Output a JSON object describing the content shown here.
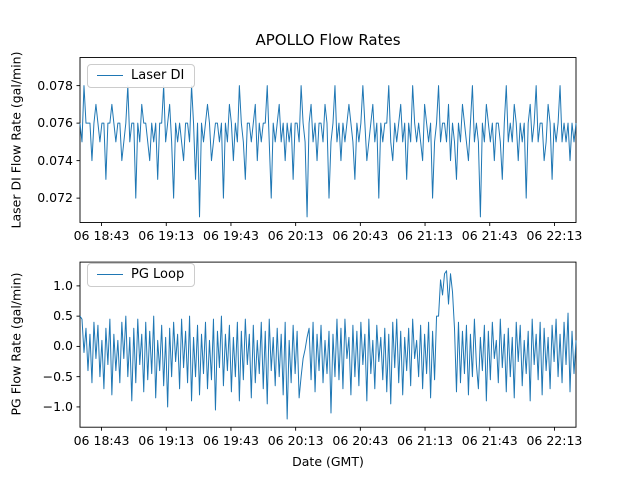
{
  "figure_title": "APOLLO Flow Rates",
  "accent_color": "#1f77b4",
  "chart_data": [
    {
      "type": "line",
      "name": "laser-di",
      "legend": [
        "Laser DI"
      ],
      "legend_position": "upper left",
      "ylabel": "Laser DI Flow Rate (gal/min)",
      "xlabel": "",
      "grid": false,
      "ylim": [
        0.0707,
        0.0795
      ],
      "yticks": [
        0.078,
        0.076,
        0.074,
        0.072
      ],
      "ytick_labels": [
        "0.078",
        "0.076",
        "0.074",
        "0.072"
      ],
      "xtick_labels": [
        "06 18:43",
        "06 19:13",
        "06 19:43",
        "06 20:13",
        "06 20:43",
        "06 21:13",
        "06 21:43",
        "06 22:13"
      ],
      "x_span_minutes": 230,
      "first_tick_offset_minutes": 10,
      "tick_interval_minutes": 30,
      "line_color": "#1f77b4",
      "values": [
        0.076,
        0.075,
        0.078,
        0.076,
        0.076,
        0.076,
        0.074,
        0.076,
        0.077,
        0.076,
        0.075,
        0.076,
        0.076,
        0.073,
        0.076,
        0.076,
        0.077,
        0.076,
        0.075,
        0.076,
        0.076,
        0.074,
        0.075,
        0.076,
        0.078,
        0.075,
        0.076,
        0.076,
        0.072,
        0.076,
        0.075,
        0.077,
        0.076,
        0.076,
        0.075,
        0.074,
        0.076,
        0.075,
        0.076,
        0.073,
        0.076,
        0.076,
        0.078,
        0.075,
        0.076,
        0.077,
        0.075,
        0.072,
        0.076,
        0.075,
        0.076,
        0.075,
        0.074,
        0.076,
        0.076,
        0.075,
        0.078,
        0.076,
        0.073,
        0.076,
        0.071,
        0.076,
        0.075,
        0.076,
        0.077,
        0.076,
        0.074,
        0.075,
        0.076,
        0.076,
        0.075,
        0.076,
        0.072,
        0.076,
        0.075,
        0.077,
        0.076,
        0.074,
        0.076,
        0.075,
        0.078,
        0.076,
        0.075,
        0.073,
        0.076,
        0.076,
        0.075,
        0.076,
        0.077,
        0.074,
        0.076,
        0.075,
        0.076,
        0.076,
        0.078,
        0.075,
        0.072,
        0.076,
        0.075,
        0.076,
        0.077,
        0.075,
        0.076,
        0.074,
        0.076,
        0.075,
        0.076,
        0.073,
        0.076,
        0.076,
        0.075,
        0.078,
        0.076,
        0.075,
        0.071,
        0.076,
        0.077,
        0.075,
        0.076,
        0.074,
        0.076,
        0.076,
        0.075,
        0.077,
        0.076,
        0.072,
        0.075,
        0.076,
        0.078,
        0.075,
        0.076,
        0.074,
        0.076,
        0.075,
        0.076,
        0.077,
        0.076,
        0.075,
        0.073,
        0.076,
        0.075,
        0.076,
        0.078,
        0.076,
        0.074,
        0.075,
        0.076,
        0.077,
        0.075,
        0.076,
        0.072,
        0.076,
        0.075,
        0.076,
        0.076,
        0.078,
        0.075,
        0.074,
        0.076,
        0.075,
        0.076,
        0.077,
        0.075,
        0.076,
        0.073,
        0.076,
        0.075,
        0.078,
        0.076,
        0.075,
        0.076,
        0.075,
        0.074,
        0.077,
        0.076,
        0.075,
        0.076,
        0.072,
        0.075,
        0.076,
        0.078,
        0.075,
        0.076,
        0.076,
        0.075,
        0.077,
        0.074,
        0.076,
        0.075,
        0.073,
        0.076,
        0.075,
        0.077,
        0.076,
        0.075,
        0.074,
        0.076,
        0.078,
        0.075,
        0.076,
        0.075,
        0.071,
        0.076,
        0.075,
        0.077,
        0.076,
        0.075,
        0.076,
        0.074,
        0.076,
        0.076,
        0.075,
        0.073,
        0.076,
        0.078,
        0.075,
        0.076,
        0.075,
        0.077,
        0.076,
        0.074,
        0.076,
        0.075,
        0.076,
        0.072,
        0.076,
        0.077,
        0.075,
        0.076,
        0.078,
        0.075,
        0.076,
        0.076,
        0.074,
        0.075,
        0.077,
        0.076,
        0.073,
        0.076,
        0.075,
        0.076,
        0.078,
        0.075,
        0.076,
        0.075,
        0.076,
        0.074,
        0.076,
        0.075,
        0.076
      ]
    },
    {
      "type": "line",
      "name": "pg-loop",
      "legend": [
        "PG Loop"
      ],
      "legend_position": "upper left",
      "ylabel": "PG Flow Rate (gal/min)",
      "xlabel": "Date (GMT)",
      "grid": false,
      "ylim": [
        -1.335,
        1.393
      ],
      "yticks": [
        1.0,
        0.5,
        0.0,
        -0.5,
        -1.0
      ],
      "ytick_labels": [
        "1.0",
        "0.5",
        "0.0",
        "−0.5",
        "−1.0"
      ],
      "xtick_labels": [
        "06 18:43",
        "06 19:13",
        "06 19:43",
        "06 20:13",
        "06 20:43",
        "06 21:13",
        "06 21:43",
        "06 22:13"
      ],
      "x_span_minutes": 230,
      "first_tick_offset_minutes": 10,
      "tick_interval_minutes": 30,
      "line_color": "#1f77b4",
      "values": [
        0.5,
        0.45,
        -0.1,
        0.3,
        -0.4,
        0.2,
        -0.6,
        0.4,
        -0.2,
        0.35,
        -0.5,
        0.1,
        -0.7,
        0.3,
        -0.3,
        0.45,
        -0.8,
        0.2,
        -0.4,
        0.1,
        -0.6,
        0.4,
        -0.2,
        0.5,
        -0.5,
        0.15,
        -0.9,
        0.3,
        -0.6,
        0.45,
        -0.3,
        0.2,
        -0.75,
        0.4,
        -0.55,
        0.25,
        -0.45,
        0.5,
        -0.85,
        0.1,
        -0.4,
        0.35,
        -0.65,
        0.15,
        -1.0,
        0.3,
        -0.5,
        0.4,
        -0.25,
        0.2,
        -0.7,
        0.45,
        -0.35,
        0.25,
        -0.6,
        0.5,
        -0.9,
        0.15,
        -0.5,
        0.35,
        -0.8,
        0.2,
        -0.45,
        0.4,
        -0.7,
        0.1,
        -0.55,
        0.45,
        -1.05,
        0.25,
        -0.35,
        0.5,
        -0.65,
        0.2,
        -0.4,
        0.35,
        -0.75,
        0.15,
        -0.5,
        0.4,
        -0.9,
        0.25,
        -0.55,
        0.45,
        -0.3,
        0.2,
        -0.85,
        0.35,
        -0.6,
        0.1,
        -0.45,
        0.4,
        -0.7,
        0.25,
        -0.95,
        0.45,
        -0.4,
        0.15,
        -0.65,
        0.3,
        -0.5,
        0.2,
        -0.8,
        0.4,
        -1.2,
        0.1,
        -0.6,
        0.35,
        -0.45,
        0.25,
        -0.85,
        -0.5,
        -0.2,
        -0.05,
        0.15,
        0.3,
        -0.55,
        0.4,
        -0.75,
        0.2,
        -0.4,
        0.35,
        -0.6,
        0.1,
        -0.45,
        0.25,
        -1.1,
        0.2,
        -0.5,
        0.45,
        -0.55,
        0.3,
        -0.7,
        0.45,
        -0.2,
        0.15,
        -0.8,
        0.35,
        -0.5,
        0.25,
        -0.65,
        0.4,
        -0.3,
        0.2,
        -0.9,
        0.45,
        -0.45,
        0.1,
        -0.7,
        0.35,
        -0.25,
        0.15,
        -0.55,
        0.3,
        -0.75,
        0.2,
        -0.95,
        0.4,
        -0.35,
        0.45,
        -0.6,
        0.25,
        -0.8,
        0.15,
        -0.4,
        0.3,
        -0.65,
        0.45,
        -0.2,
        0.1,
        -0.5,
        0.35,
        -0.7,
        0.2,
        -0.45,
        0.4,
        -0.85,
        0.25,
        -0.55,
        0.5,
        0.5,
        1.1,
        0.85,
        1.2,
        1.25,
        0.7,
        1.2,
        0.9,
        0.3,
        -0.75,
        0.4,
        -0.6,
        0.25,
        -0.45,
        0.35,
        -0.8,
        0.2,
        -0.5,
        0.45,
        -0.3,
        -0.7,
        0.15,
        -0.4,
        0.35,
        -0.9,
        0.25,
        -0.55,
        0.4,
        -0.2,
        0.1,
        -0.6,
        0.45,
        -0.35,
        0.2,
        -0.75,
        0.3,
        -0.5,
        0.15,
        -0.85,
        0.4,
        -0.25,
        0.35,
        -0.65,
        0.1,
        -0.45,
        0.25,
        -0.9,
        0.45,
        -0.3,
        0.2,
        -0.55,
        0.4,
        -0.8,
        0.3,
        -0.4,
        0.15,
        -0.7,
        0.35,
        -0.25,
        0.45,
        -0.5,
        0.2,
        -0.6,
        0.4,
        -0.3,
        0.55,
        -0.75,
        0.25,
        -0.45,
        0.1
      ]
    }
  ]
}
